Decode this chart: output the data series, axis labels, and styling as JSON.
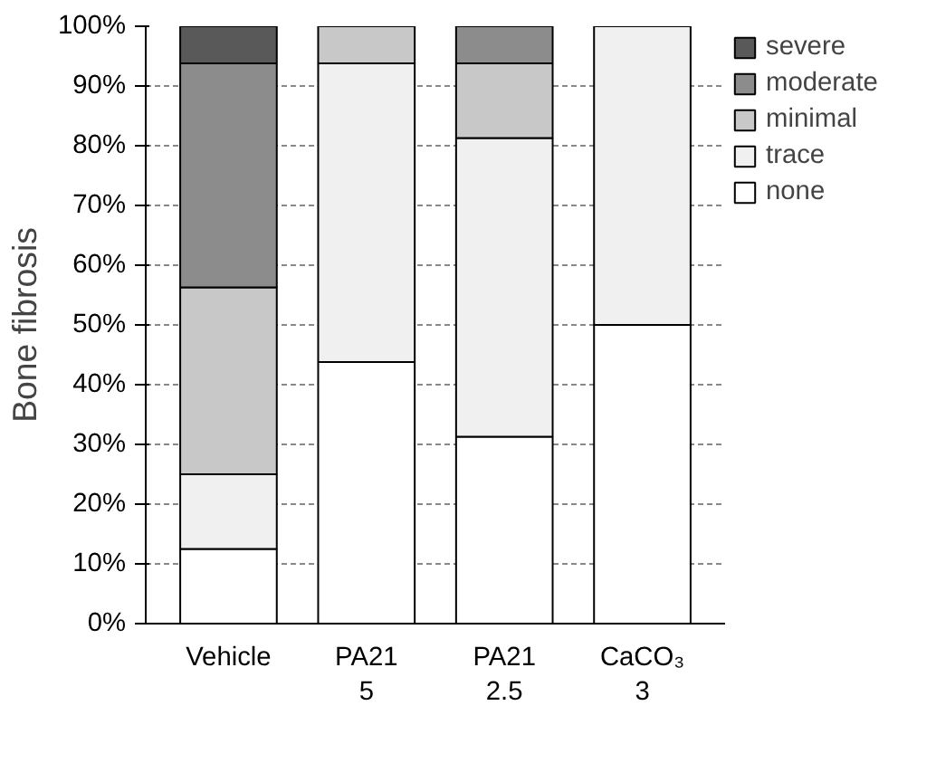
{
  "chart_data": {
    "type": "bar",
    "stacked": true,
    "ylabel": "Bone fibrosis",
    "categories": [
      "Vehicle",
      "PA21\n5",
      "PA21\n2.5",
      "CaCO₃\n3"
    ],
    "series": [
      {
        "name": "none",
        "color": "#ffffff",
        "values": [
          12.5,
          43.8,
          31.3,
          50
        ]
      },
      {
        "name": "trace",
        "color": "#f0f0f0",
        "values": [
          12.5,
          50,
          50,
          50
        ]
      },
      {
        "name": "minimal",
        "color": "#c8c8c8",
        "values": [
          31.3,
          6.2,
          12.5,
          null
        ]
      },
      {
        "name": "moderate",
        "color": "#8c8c8c",
        "values": [
          37.5,
          null,
          6.2,
          null
        ]
      },
      {
        "name": "severe",
        "color": "#595959",
        "values": [
          6.2,
          null,
          null,
          null
        ]
      }
    ],
    "ylim": [
      0,
      100
    ],
    "yticks": [
      {
        "value": 0,
        "label": "0%"
      },
      {
        "value": 10,
        "label": "10%"
      },
      {
        "value": 20,
        "label": "20%"
      },
      {
        "value": 30,
        "label": "30%"
      },
      {
        "value": 40,
        "label": "40%"
      },
      {
        "value": 50,
        "label": "50%"
      },
      {
        "value": 60,
        "label": "60%"
      },
      {
        "value": 70,
        "label": "70%"
      },
      {
        "value": 80,
        "label": "80%"
      },
      {
        "value": 90,
        "label": "90%"
      },
      {
        "value": 100,
        "label": "100%"
      }
    ],
    "grid": "y",
    "legend": "right"
  }
}
